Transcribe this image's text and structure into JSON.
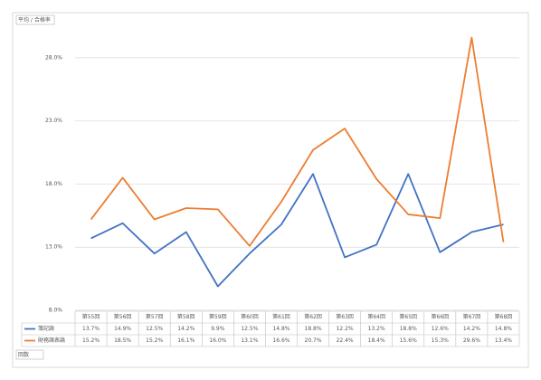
{
  "chart_data": {
    "type": "line",
    "field_label": "平均 / 合格率",
    "axis_field_label": "回数",
    "categories": [
      "第55回",
      "第56回",
      "第57回",
      "第58回",
      "第59回",
      "第60回",
      "第61回",
      "第62回",
      "第63回",
      "第64回",
      "第65回",
      "第66回",
      "第67回",
      "第68回"
    ],
    "series": [
      {
        "name": "簿記論",
        "color": "#4472c4",
        "values": [
          13.7,
          14.9,
          12.5,
          14.2,
          9.9,
          12.5,
          14.8,
          18.8,
          12.2,
          13.2,
          18.8,
          12.6,
          14.2,
          14.8
        ],
        "value_labels": [
          "13.7%",
          "14.9%",
          "12.5%",
          "14.2%",
          "9.9%",
          "12.5%",
          "14.8%",
          "18.8%",
          "12.2%",
          "13.2%",
          "18.8%",
          "12.6%",
          "14.2%",
          "14.8%"
        ]
      },
      {
        "name": "財務諸表論",
        "color": "#ed7d31",
        "values": [
          15.2,
          18.5,
          15.2,
          16.1,
          16.0,
          13.1,
          16.6,
          20.7,
          22.4,
          18.4,
          15.6,
          15.3,
          29.6,
          13.4
        ],
        "value_labels": [
          "15.2%",
          "18.5%",
          "15.2%",
          "16.1%",
          "16.0%",
          "13.1%",
          "16.6%",
          "20.7%",
          "22.4%",
          "18.4%",
          "15.6%",
          "15.3%",
          "29.6%",
          "13.4%"
        ]
      }
    ],
    "ylim": [
      8,
      30
    ],
    "yticks": [
      {
        "value": 8,
        "label": "8.0%"
      },
      {
        "value": 13,
        "label": "13.0%"
      },
      {
        "value": 18,
        "label": "18.0%"
      },
      {
        "value": 23,
        "label": "23.0%"
      },
      {
        "value": 28,
        "label": "28.0%"
      }
    ],
    "grid": true
  }
}
